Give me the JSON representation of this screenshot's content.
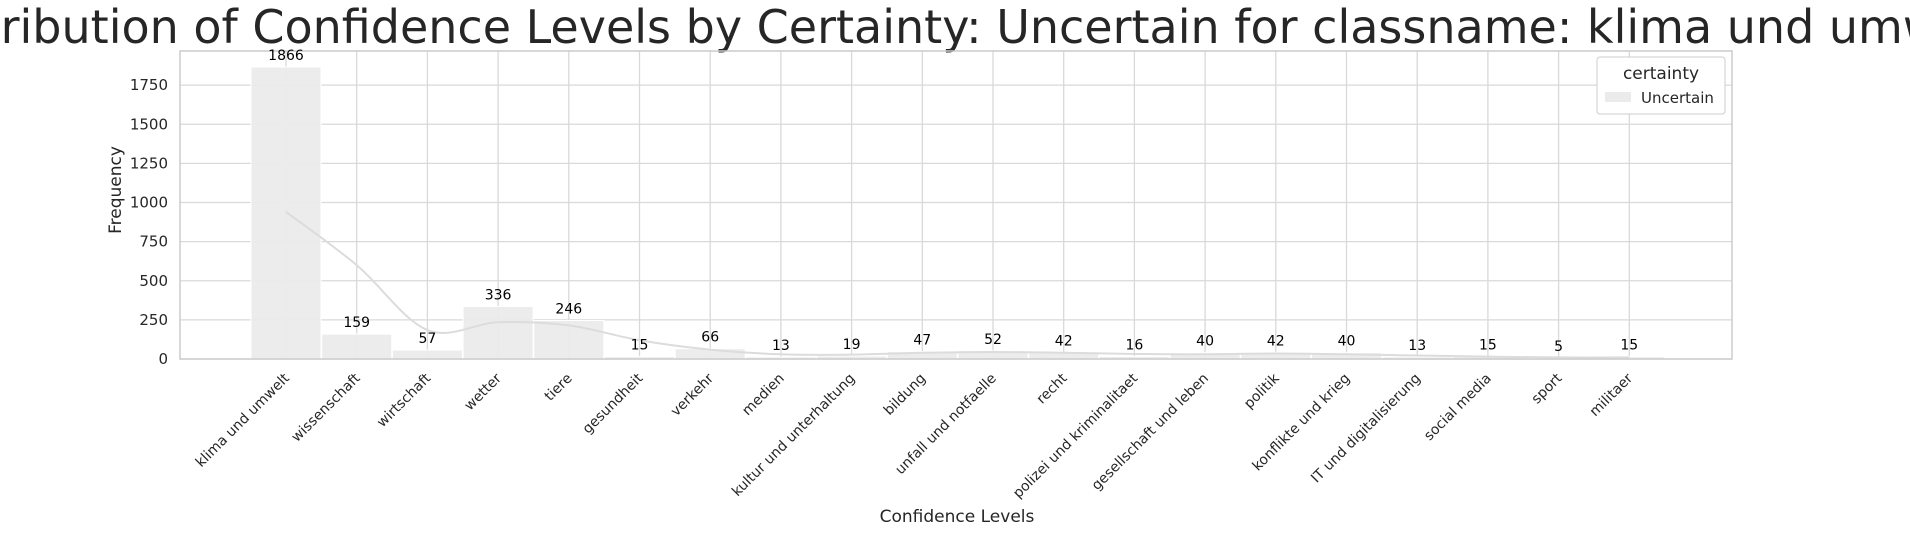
{
  "chart_data": {
    "type": "bar",
    "title": "Distribution of Confidence Levels by Certainty: Uncertain for classname: klima und umwelt",
    "xlabel": "Confidence Levels",
    "ylabel": "Frequency",
    "categories": [
      "klima und umwelt",
      "wissenschaft",
      "wirtschaft",
      "wetter",
      "tiere",
      "gesundheit",
      "verkehr",
      "medien",
      "kultur und unterhaltung",
      "bildung",
      "unfall und notfaelle",
      "recht",
      "polizei und kriminalitaet",
      "gesellschaft und leben",
      "politik",
      "konflikte und krieg",
      "IT und digitalisierung",
      "social media",
      "sport",
      "militaer"
    ],
    "series": [
      {
        "name": "Uncertain",
        "values": [
          1866,
          159,
          57,
          336,
          246,
          15,
          66,
          13,
          19,
          47,
          52,
          42,
          16,
          40,
          42,
          40,
          13,
          15,
          5,
          15
        ]
      }
    ],
    "data_labels": [
      "1866",
      "159",
      "57",
      "336",
      "246",
      "15",
      "66",
      "13",
      "19",
      "47",
      "52",
      "42",
      "16",
      "40",
      "42",
      "40",
      "13",
      "15",
      "5",
      "15"
    ],
    "ylim": [
      0,
      1960
    ],
    "yticks": [
      0,
      250,
      500,
      750,
      1000,
      1250,
      1500,
      1750
    ],
    "grid": true,
    "kde_curve": true,
    "legend": {
      "title": "certainty",
      "entries": [
        "Uncertain"
      ],
      "position": "top-right"
    },
    "colors": {
      "bar": "#ebebeb",
      "kde": "#dcdcdc",
      "grid": "#d9d9d9",
      "frame": "#cccccc",
      "text": "#262626"
    }
  }
}
